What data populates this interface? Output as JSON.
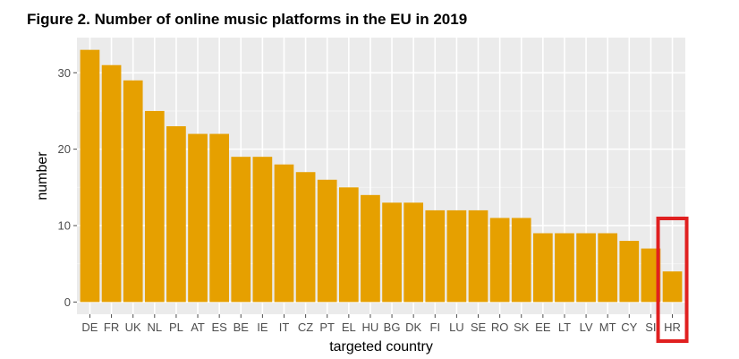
{
  "figure": {
    "title": "Figure 2. Number of online music platforms in the EU in 2019"
  },
  "chart_data": {
    "type": "bar",
    "title": "Figure 2. Number of online music platforms in the EU in 2019",
    "xlabel": "targeted country",
    "ylabel": "number",
    "categories": [
      "DE",
      "FR",
      "UK",
      "NL",
      "PL",
      "AT",
      "ES",
      "BE",
      "IE",
      "IT",
      "CZ",
      "PT",
      "EL",
      "HU",
      "BG",
      "DK",
      "FI",
      "LU",
      "SE",
      "RO",
      "SK",
      "EE",
      "LT",
      "LV",
      "MT",
      "CY",
      "SI",
      "HR"
    ],
    "values": [
      33,
      31,
      29,
      25,
      23,
      22,
      22,
      19,
      19,
      18,
      17,
      16,
      15,
      14,
      13,
      13,
      12,
      12,
      12,
      11,
      11,
      9,
      9,
      9,
      9,
      8,
      7,
      4
    ],
    "y_ticks": [
      0,
      10,
      20,
      30
    ],
    "ylim": [
      -1.6,
      34.6
    ],
    "grid": true,
    "highlight_category": "HR",
    "colors": {
      "bar": "#e6a000",
      "panel_background": "#ebebeb",
      "grid_major": "#ffffff",
      "grid_minor": "#f4f4f4",
      "highlight_box": "#e02020",
      "tick_text": "#4d4d4d",
      "axis_title_text": "#000000"
    }
  }
}
